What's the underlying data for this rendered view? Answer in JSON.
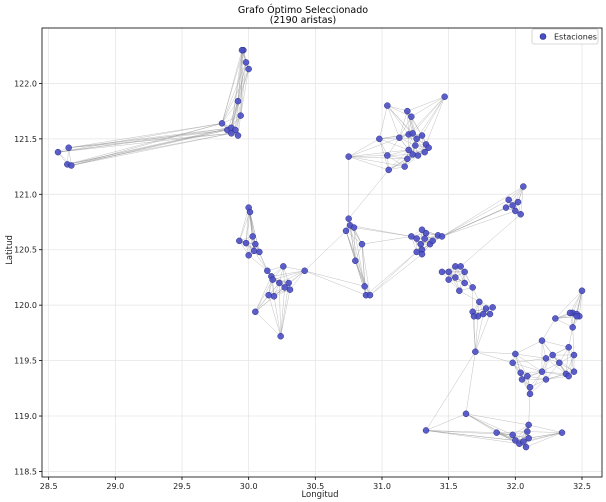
{
  "chart_data": {
    "type": "scatter",
    "title": "Grafo Óptimo Seleccionado",
    "subtitle": "(2190 aristas)",
    "xlabel": "Longitud",
    "ylabel": "Latitud",
    "xlim": [
      28.45,
      32.65
    ],
    "ylim": [
      118.45,
      122.5
    ],
    "x_ticks": [
      28.5,
      29.0,
      29.5,
      30.0,
      30.5,
      31.0,
      31.5,
      32.0,
      32.5
    ],
    "y_ticks": [
      118.5,
      119.0,
      119.5,
      120.0,
      120.5,
      121.0,
      121.5,
      122.0
    ],
    "x_tick_labels": [
      "28.5",
      "29.0",
      "29.5",
      "30.0",
      "30.5",
      "31.0",
      "31.5",
      "32.0",
      "32.5"
    ],
    "y_tick_labels": [
      "118.5",
      "119.0",
      "119.5",
      "120.0",
      "120.5",
      "121.0",
      "121.5",
      "122.0"
    ],
    "grid": true,
    "legend": {
      "position": "top-right",
      "entries": [
        "Estaciones"
      ]
    },
    "colors": {
      "points": "#4b4fc4",
      "point_edge": "#2a2d8a",
      "edges": "#8c8c8c"
    },
    "series": [
      {
        "name": "Estaciones",
        "points": [
          [
            29.96,
            122.3
          ],
          [
            29.95,
            122.3
          ],
          [
            29.98,
            122.19
          ],
          [
            30.0,
            122.13
          ],
          [
            29.92,
            121.84
          ],
          [
            29.94,
            121.71
          ],
          [
            29.8,
            121.64
          ],
          [
            29.84,
            121.58
          ],
          [
            29.87,
            121.6
          ],
          [
            29.9,
            121.58
          ],
          [
            29.92,
            121.53
          ],
          [
            29.87,
            121.55
          ],
          [
            28.57,
            121.38
          ],
          [
            28.65,
            121.42
          ],
          [
            28.64,
            121.27
          ],
          [
            28.67,
            121.26
          ],
          [
            31.04,
            121.8
          ],
          [
            31.19,
            121.75
          ],
          [
            31.47,
            121.88
          ],
          [
            31.22,
            121.7
          ],
          [
            31.13,
            121.51
          ],
          [
            31.2,
            121.54
          ],
          [
            31.23,
            121.55
          ],
          [
            31.26,
            121.5
          ],
          [
            31.3,
            121.53
          ],
          [
            31.33,
            121.45
          ],
          [
            31.35,
            121.42
          ],
          [
            31.25,
            121.44
          ],
          [
            31.2,
            121.4
          ],
          [
            31.23,
            121.36
          ],
          [
            31.27,
            121.35
          ],
          [
            31.32,
            121.38
          ],
          [
            31.19,
            121.32
          ],
          [
            30.98,
            121.5
          ],
          [
            31.04,
            121.35
          ],
          [
            30.75,
            121.34
          ],
          [
            31.05,
            121.22
          ],
          [
            31.17,
            121.25
          ],
          [
            32.06,
            121.07
          ],
          [
            31.95,
            120.95
          ],
          [
            31.98,
            120.9
          ],
          [
            32.0,
            120.85
          ],
          [
            32.02,
            120.93
          ],
          [
            31.93,
            120.88
          ],
          [
            32.04,
            120.82
          ],
          [
            31.36,
            120.55
          ],
          [
            31.42,
            120.63
          ],
          [
            31.45,
            120.62
          ],
          [
            31.38,
            120.58
          ],
          [
            31.33,
            120.65
          ],
          [
            31.3,
            120.68
          ],
          [
            31.32,
            120.6
          ],
          [
            31.26,
            120.6
          ],
          [
            31.22,
            120.62
          ],
          [
            31.29,
            120.55
          ],
          [
            31.3,
            120.5
          ],
          [
            31.26,
            120.48
          ],
          [
            30.75,
            120.78
          ],
          [
            30.76,
            120.72
          ],
          [
            30.79,
            120.7
          ],
          [
            30.73,
            120.67
          ],
          [
            30.85,
            120.55
          ],
          [
            30.8,
            120.4
          ],
          [
            30.87,
            120.17
          ],
          [
            31.3,
            120.46
          ],
          [
            30.0,
            120.88
          ],
          [
            30.01,
            120.84
          ],
          [
            29.93,
            120.58
          ],
          [
            29.98,
            120.56
          ],
          [
            30.03,
            120.62
          ],
          [
            30.05,
            120.55
          ],
          [
            30.08,
            120.48
          ],
          [
            30.0,
            120.45
          ],
          [
            30.04,
            120.49
          ],
          [
            30.14,
            120.31
          ],
          [
            30.17,
            120.26
          ],
          [
            30.18,
            120.23
          ],
          [
            30.23,
            120.2
          ],
          [
            30.27,
            120.16
          ],
          [
            30.31,
            120.14
          ],
          [
            30.3,
            120.2
          ],
          [
            30.26,
            120.35
          ],
          [
            30.42,
            120.31
          ],
          [
            30.19,
            120.08
          ],
          [
            30.15,
            120.09
          ],
          [
            30.05,
            119.94
          ],
          [
            30.24,
            119.72
          ],
          [
            30.88,
            120.09
          ],
          [
            30.91,
            120.09
          ],
          [
            31.55,
            120.35
          ],
          [
            31.59,
            120.35
          ],
          [
            31.5,
            120.3
          ],
          [
            31.62,
            120.3
          ],
          [
            31.55,
            120.25
          ],
          [
            31.45,
            120.3
          ],
          [
            31.5,
            120.23
          ],
          [
            31.62,
            120.2
          ],
          [
            31.68,
            120.16
          ],
          [
            31.58,
            120.13
          ],
          [
            31.73,
            120.03
          ],
          [
            31.78,
            119.97
          ],
          [
            31.83,
            119.98
          ],
          [
            31.72,
            119.9
          ],
          [
            31.68,
            119.94
          ],
          [
            31.69,
            119.9
          ],
          [
            31.76,
            119.92
          ],
          [
            31.81,
            119.92
          ],
          [
            32.5,
            120.13
          ],
          [
            32.43,
            119.93
          ],
          [
            32.46,
            119.92
          ],
          [
            32.48,
            119.9
          ],
          [
            32.41,
            119.93
          ],
          [
            32.3,
            119.88
          ],
          [
            32.2,
            119.68
          ],
          [
            32.28,
            119.55
          ],
          [
            32.23,
            119.52
          ],
          [
            32.33,
            119.48
          ],
          [
            32.2,
            119.4
          ],
          [
            32.23,
            119.33
          ],
          [
            32.38,
            119.38
          ],
          [
            32.4,
            119.36
          ],
          [
            32.44,
            119.4
          ],
          [
            32.44,
            119.55
          ],
          [
            32.4,
            119.62
          ],
          [
            32.43,
            119.8
          ],
          [
            32.46,
            119.9
          ],
          [
            31.7,
            119.58
          ],
          [
            32.0,
            119.56
          ],
          [
            31.98,
            119.48
          ],
          [
            32.04,
            119.39
          ],
          [
            32.09,
            119.36
          ],
          [
            32.05,
            119.33
          ],
          [
            32.11,
            119.26
          ],
          [
            31.33,
            118.87
          ],
          [
            31.63,
            119.02
          ],
          [
            31.86,
            118.85
          ],
          [
            31.98,
            118.83
          ],
          [
            32.0,
            118.78
          ],
          [
            32.03,
            118.75
          ],
          [
            32.06,
            118.77
          ],
          [
            32.1,
            118.8
          ],
          [
            32.08,
            118.72
          ],
          [
            32.1,
            118.92
          ],
          [
            32.09,
            118.86
          ],
          [
            32.35,
            118.85
          ],
          [
            32.11,
            119.2
          ]
        ]
      }
    ]
  }
}
